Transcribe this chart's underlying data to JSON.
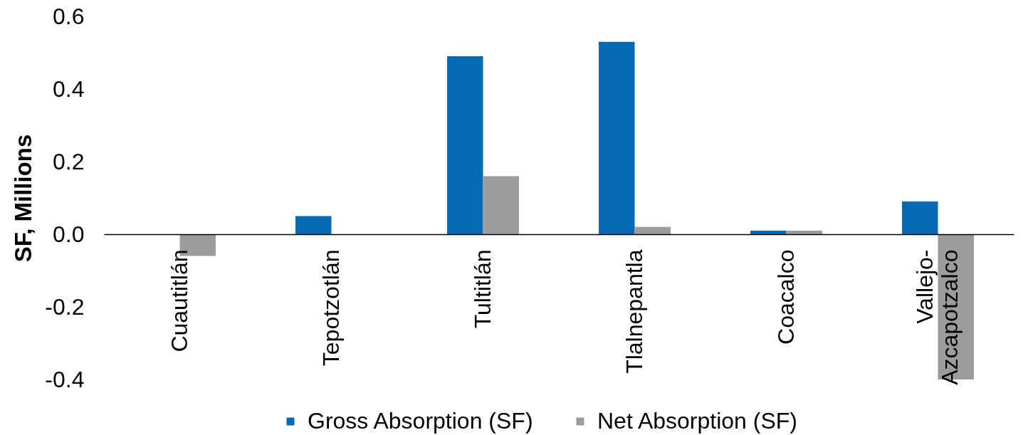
{
  "chart_data": {
    "type": "bar",
    "ylabel": "SF, Millions",
    "categories": [
      "Cuautitlán",
      "Tepotzotlán",
      "Tultitlán",
      "Tlalnepantla",
      "Coacalco",
      "Vallejo-Azcapotzalco"
    ],
    "series": [
      {
        "name": "Gross Absorption (SF)",
        "color": "#0569b4",
        "values": [
          null,
          0.05,
          0.49,
          0.53,
          0.01,
          0.09
        ]
      },
      {
        "name": "Net Absorption (SF)",
        "color": "#9c9c9c",
        "values": [
          -0.06,
          null,
          0.16,
          0.02,
          0.01,
          -0.4
        ]
      }
    ],
    "ylim": [
      -0.4,
      0.6
    ],
    "yticks": [
      -0.4,
      -0.2,
      {
        "value": 0,
        "label": "0.0"
      },
      0.2,
      0.4,
      0.6
    ],
    "grid": false,
    "legend": "bottom"
  }
}
